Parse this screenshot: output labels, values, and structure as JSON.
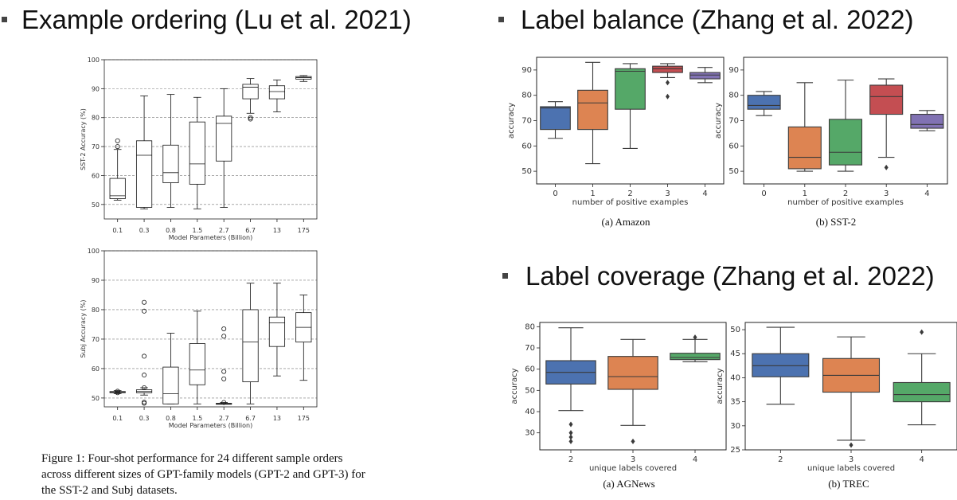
{
  "headings": {
    "h1": "Example ordering (Lu et al. 2021)",
    "h2": "Label balance (Zhang et al. 2022)",
    "h3": "Label coverage (Zhang et al. 2022)"
  },
  "figure_caption": "Figure 1: Four-shot performance for 24 different sample orders across different sizes of GPT-family models (GPT-2 and GPT-3) for the SST-2 and Subj datasets.",
  "colors": {
    "blue": "#4c72b0",
    "orange": "#dd8452",
    "green": "#55a868",
    "red": "#c44e52",
    "purple": "#8172b3"
  },
  "chart_data": [
    {
      "id": "sst2_order",
      "type": "box",
      "xlabel": "Model Parameters (Billion)",
      "ylabel": "SST-2 Accuracy (%)",
      "ylim": [
        45,
        100
      ],
      "yticks": [
        50,
        60,
        70,
        80,
        90,
        100
      ],
      "grid": true,
      "categories": [
        "0.1",
        "0.3",
        "0.8",
        "1.5",
        "2.7",
        "6.7",
        "13",
        "175"
      ],
      "boxes": [
        {
          "low": 51.5,
          "q1": 52,
          "med": 53,
          "q3": 59,
          "high": 69,
          "outliers": [
            70,
            72
          ]
        },
        {
          "low": 48.5,
          "q1": 49,
          "med": 67,
          "q3": 72,
          "high": 87.5,
          "outliers": []
        },
        {
          "low": 49,
          "q1": 57.5,
          "med": 61,
          "q3": 70.5,
          "high": 88,
          "outliers": []
        },
        {
          "low": 48.5,
          "q1": 57,
          "med": 64,
          "q3": 78.5,
          "high": 87,
          "outliers": []
        },
        {
          "low": 49,
          "q1": 65,
          "med": 78,
          "q3": 80.5,
          "high": 90,
          "outliers": []
        },
        {
          "low": 81.5,
          "q1": 86.5,
          "med": 90.5,
          "q3": 91.5,
          "high": 93.5,
          "outliers": [
            79.5,
            80
          ]
        },
        {
          "low": 82,
          "q1": 86.5,
          "med": 89,
          "q3": 91,
          "high": 93,
          "outliers": []
        },
        {
          "low": 92.5,
          "q1": 93.3,
          "med": 93.8,
          "q3": 94.2,
          "high": 94.5,
          "outliers": []
        }
      ]
    },
    {
      "id": "subj_order",
      "type": "box",
      "xlabel": "Model Parameters (Billion)",
      "ylabel": "Subj Accuracy (%)",
      "ylim": [
        47,
        100
      ],
      "yticks": [
        50,
        60,
        70,
        80,
        90,
        100
      ],
      "grid": true,
      "categories": [
        "0.1",
        "0.3",
        "0.8",
        "1.5",
        "2.7",
        "6.7",
        "13",
        "175"
      ],
      "boxes": [
        {
          "low": 51.5,
          "q1": 51.8,
          "med": 52,
          "q3": 52.2,
          "high": 52.5,
          "outliers": [
            51.8,
            52.3
          ]
        },
        {
          "low": 51,
          "q1": 51.8,
          "med": 52.2,
          "q3": 52.8,
          "high": 53.5,
          "outliers": [
            48.2,
            48.6,
            53.5,
            57.8,
            64.2,
            79.5,
            82.5
          ]
        },
        {
          "low": 48,
          "q1": 48,
          "med": 51.5,
          "q3": 60.5,
          "high": 72,
          "outliers": []
        },
        {
          "low": 48,
          "q1": 54.5,
          "med": 59.5,
          "q3": 68.5,
          "high": 79.5,
          "outliers": []
        },
        {
          "low": 48,
          "q1": 48,
          "med": 48,
          "q3": 48.2,
          "high": 48.5,
          "outliers": [
            48.5,
            56.5,
            59,
            71,
            73.5
          ]
        },
        {
          "low": 48,
          "q1": 55.5,
          "med": 69,
          "q3": 80,
          "high": 89,
          "outliers": []
        },
        {
          "low": 57.5,
          "q1": 67.5,
          "med": 75.5,
          "q3": 77.5,
          "high": 89,
          "outliers": []
        },
        {
          "low": 56,
          "q1": 69,
          "med": 74,
          "q3": 79,
          "high": 85,
          "outliers": []
        }
      ]
    },
    {
      "id": "amazon_balance",
      "type": "box",
      "xlabel": "number of positive examples",
      "ylabel": "accuracy",
      "subcaption": "(a) Amazon",
      "ylim": [
        45,
        95
      ],
      "yticks": [
        50,
        60,
        70,
        80,
        90
      ],
      "categories": [
        "0",
        "1",
        "2",
        "3",
        "4"
      ],
      "boxes": [
        {
          "low": 63,
          "q1": 66.5,
          "med": 75,
          "q3": 75.5,
          "high": 77.5,
          "outliers": [],
          "color": "blue"
        },
        {
          "low": 53,
          "q1": 66.5,
          "med": 77,
          "q3": 82,
          "high": 93,
          "outliers": [],
          "color": "orange"
        },
        {
          "low": 59,
          "q1": 74.5,
          "med": 89.5,
          "q3": 90.5,
          "high": 92.5,
          "outliers": [],
          "color": "green"
        },
        {
          "low": 87,
          "q1": 89,
          "med": 90.5,
          "q3": 91.5,
          "high": 92.5,
          "outliers": [
            79.5,
            85
          ],
          "color": "red"
        },
        {
          "low": 85,
          "q1": 86.5,
          "med": 88,
          "q3": 89,
          "high": 91,
          "outliers": [],
          "color": "purple"
        }
      ]
    },
    {
      "id": "sst2_balance",
      "type": "box",
      "xlabel": "number of positive examples",
      "ylabel": "accuracy",
      "subcaption": "(b) SST-2",
      "ylim": [
        45,
        95
      ],
      "yticks": [
        50,
        60,
        70,
        80,
        90
      ],
      "categories": [
        "0",
        "1",
        "2",
        "3",
        "4"
      ],
      "boxes": [
        {
          "low": 72,
          "q1": 74.5,
          "med": 76,
          "q3": 80,
          "high": 81.5,
          "outliers": [],
          "color": "blue"
        },
        {
          "low": 50,
          "q1": 51,
          "med": 55.5,
          "q3": 67.5,
          "high": 85,
          "outliers": [],
          "color": "orange"
        },
        {
          "low": 50,
          "q1": 52.5,
          "med": 57.5,
          "q3": 70.5,
          "high": 86,
          "outliers": [],
          "color": "green"
        },
        {
          "low": 55.5,
          "q1": 72.5,
          "med": 79.5,
          "q3": 84,
          "high": 86.5,
          "outliers": [
            51.5
          ],
          "color": "red"
        },
        {
          "low": 66,
          "q1": 67,
          "med": 68.5,
          "q3": 72.5,
          "high": 74,
          "outliers": [],
          "color": "purple"
        }
      ]
    },
    {
      "id": "agnews_coverage",
      "type": "box",
      "xlabel": "unique labels covered",
      "ylabel": "accuracy",
      "subcaption": "(a) AGNews",
      "ylim": [
        22,
        82
      ],
      "yticks": [
        30,
        40,
        50,
        60,
        70,
        80
      ],
      "categories": [
        "2",
        "3",
        "4"
      ],
      "boxes": [
        {
          "low": 40.5,
          "q1": 53,
          "med": 58.5,
          "q3": 64,
          "high": 79.5,
          "outliers": [
            26,
            28,
            30,
            34
          ],
          "color": "blue"
        },
        {
          "low": 33.5,
          "q1": 50.5,
          "med": 56.5,
          "q3": 66,
          "high": 74,
          "outliers": [
            26
          ],
          "color": "orange"
        },
        {
          "low": 63.5,
          "q1": 64.5,
          "med": 65.5,
          "q3": 67.5,
          "high": 74,
          "outliers": [
            75
          ],
          "color": "green"
        }
      ]
    },
    {
      "id": "trec_coverage",
      "type": "box",
      "xlabel": "unique labels covered",
      "ylabel": "accuracy",
      "subcaption": "(b) TREC",
      "ylim": [
        25,
        51.5
      ],
      "yticks": [
        25,
        30,
        35,
        40,
        45,
        50
      ],
      "categories": [
        "2",
        "3",
        "4"
      ],
      "boxes": [
        {
          "low": 34.5,
          "q1": 40.2,
          "med": 42.5,
          "q3": 45,
          "high": 50.5,
          "outliers": [],
          "color": "blue"
        },
        {
          "low": 27,
          "q1": 37,
          "med": 40.5,
          "q3": 44,
          "high": 48.5,
          "outliers": [
            26
          ],
          "color": "orange"
        },
        {
          "low": 30.2,
          "q1": 35,
          "med": 36.5,
          "q3": 39,
          "high": 45,
          "outliers": [
            49.5
          ],
          "color": "green"
        }
      ]
    }
  ]
}
